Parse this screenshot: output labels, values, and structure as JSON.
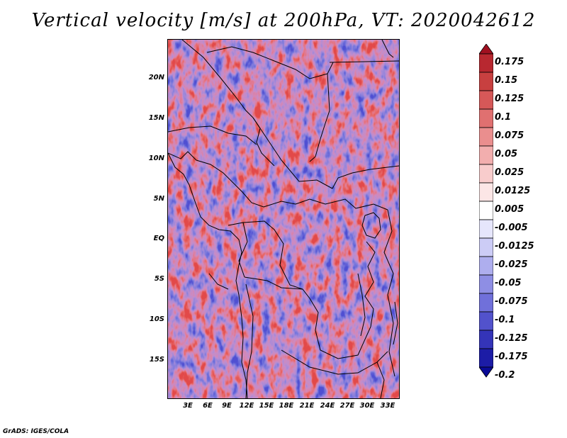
{
  "title": "Vertical velocity [m/s] at 200hPa, VT: 2020042612",
  "credit": "GrADS: IGES/COLA",
  "y_axis_labels": [
    "20N",
    "15N",
    "10N",
    "5N",
    "EQ",
    "5S",
    "10S",
    "15S"
  ],
  "x_axis_labels": [
    "3E",
    "6E",
    "9E",
    "12E",
    "15E",
    "18E",
    "21E",
    "24E",
    "27E",
    "30E",
    "33E"
  ],
  "colorbar": {
    "labels": [
      "0.175",
      "0.15",
      "0.125",
      "0.1",
      "0.075",
      "0.05",
      "0.025",
      "0.0125",
      "0.005",
      "-0.005",
      "-0.0125",
      "-0.025",
      "-0.05",
      "-0.075",
      "-0.1",
      "-0.125",
      "-0.175",
      "-0.2"
    ],
    "colors": [
      "#a01020",
      "#b82830",
      "#c84040",
      "#d65858",
      "#e07070",
      "#ea8e8e",
      "#f2aeae",
      "#f8cccc",
      "#fce6e6",
      "#ffffff",
      "#e6e6fc",
      "#ccccf6",
      "#aeaeee",
      "#8e8ee4",
      "#7070da",
      "#5252cc",
      "#3434b8",
      "#1c1ca6",
      "#0a0a96"
    ]
  }
}
